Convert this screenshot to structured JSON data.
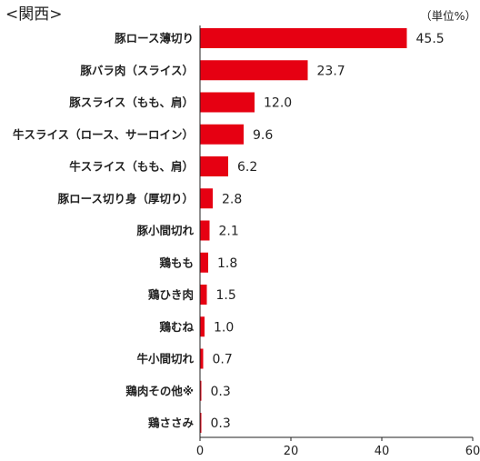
{
  "chart_data": {
    "type": "bar",
    "orientation": "horizontal",
    "title": "<関西>",
    "unit_label": "（単位%）",
    "categories": [
      "豚ロース薄切り",
      "豚バラ肉（スライス）",
      "豚スライス（もも、肩）",
      "牛スライス（ロース、サーロイン）",
      "牛スライス（もも、肩）",
      "豚ロース切り身（厚切り）",
      "豚小間切れ",
      "鶏もも",
      "鶏ひき肉",
      "鶏むね",
      "牛小間切れ",
      "鶏肉その他※",
      "鶏ささみ"
    ],
    "values": [
      45.5,
      23.7,
      12.0,
      9.6,
      6.2,
      2.8,
      2.1,
      1.8,
      1.5,
      1.0,
      0.7,
      0.3,
      0.3
    ],
    "value_labels": [
      "45.5",
      "23.7",
      "12.0",
      "9.6",
      "6.2",
      "2.8",
      "2.1",
      "1.8",
      "1.5",
      "1.0",
      "0.7",
      "0.3",
      "0.3"
    ],
    "xlim": [
      0,
      60
    ],
    "xticks": [
      0,
      20,
      40,
      60
    ],
    "xtick_labels": [
      "0",
      "20",
      "40",
      "60"
    ],
    "bar_color": "#e60012",
    "grid": false,
    "legend": "none"
  }
}
